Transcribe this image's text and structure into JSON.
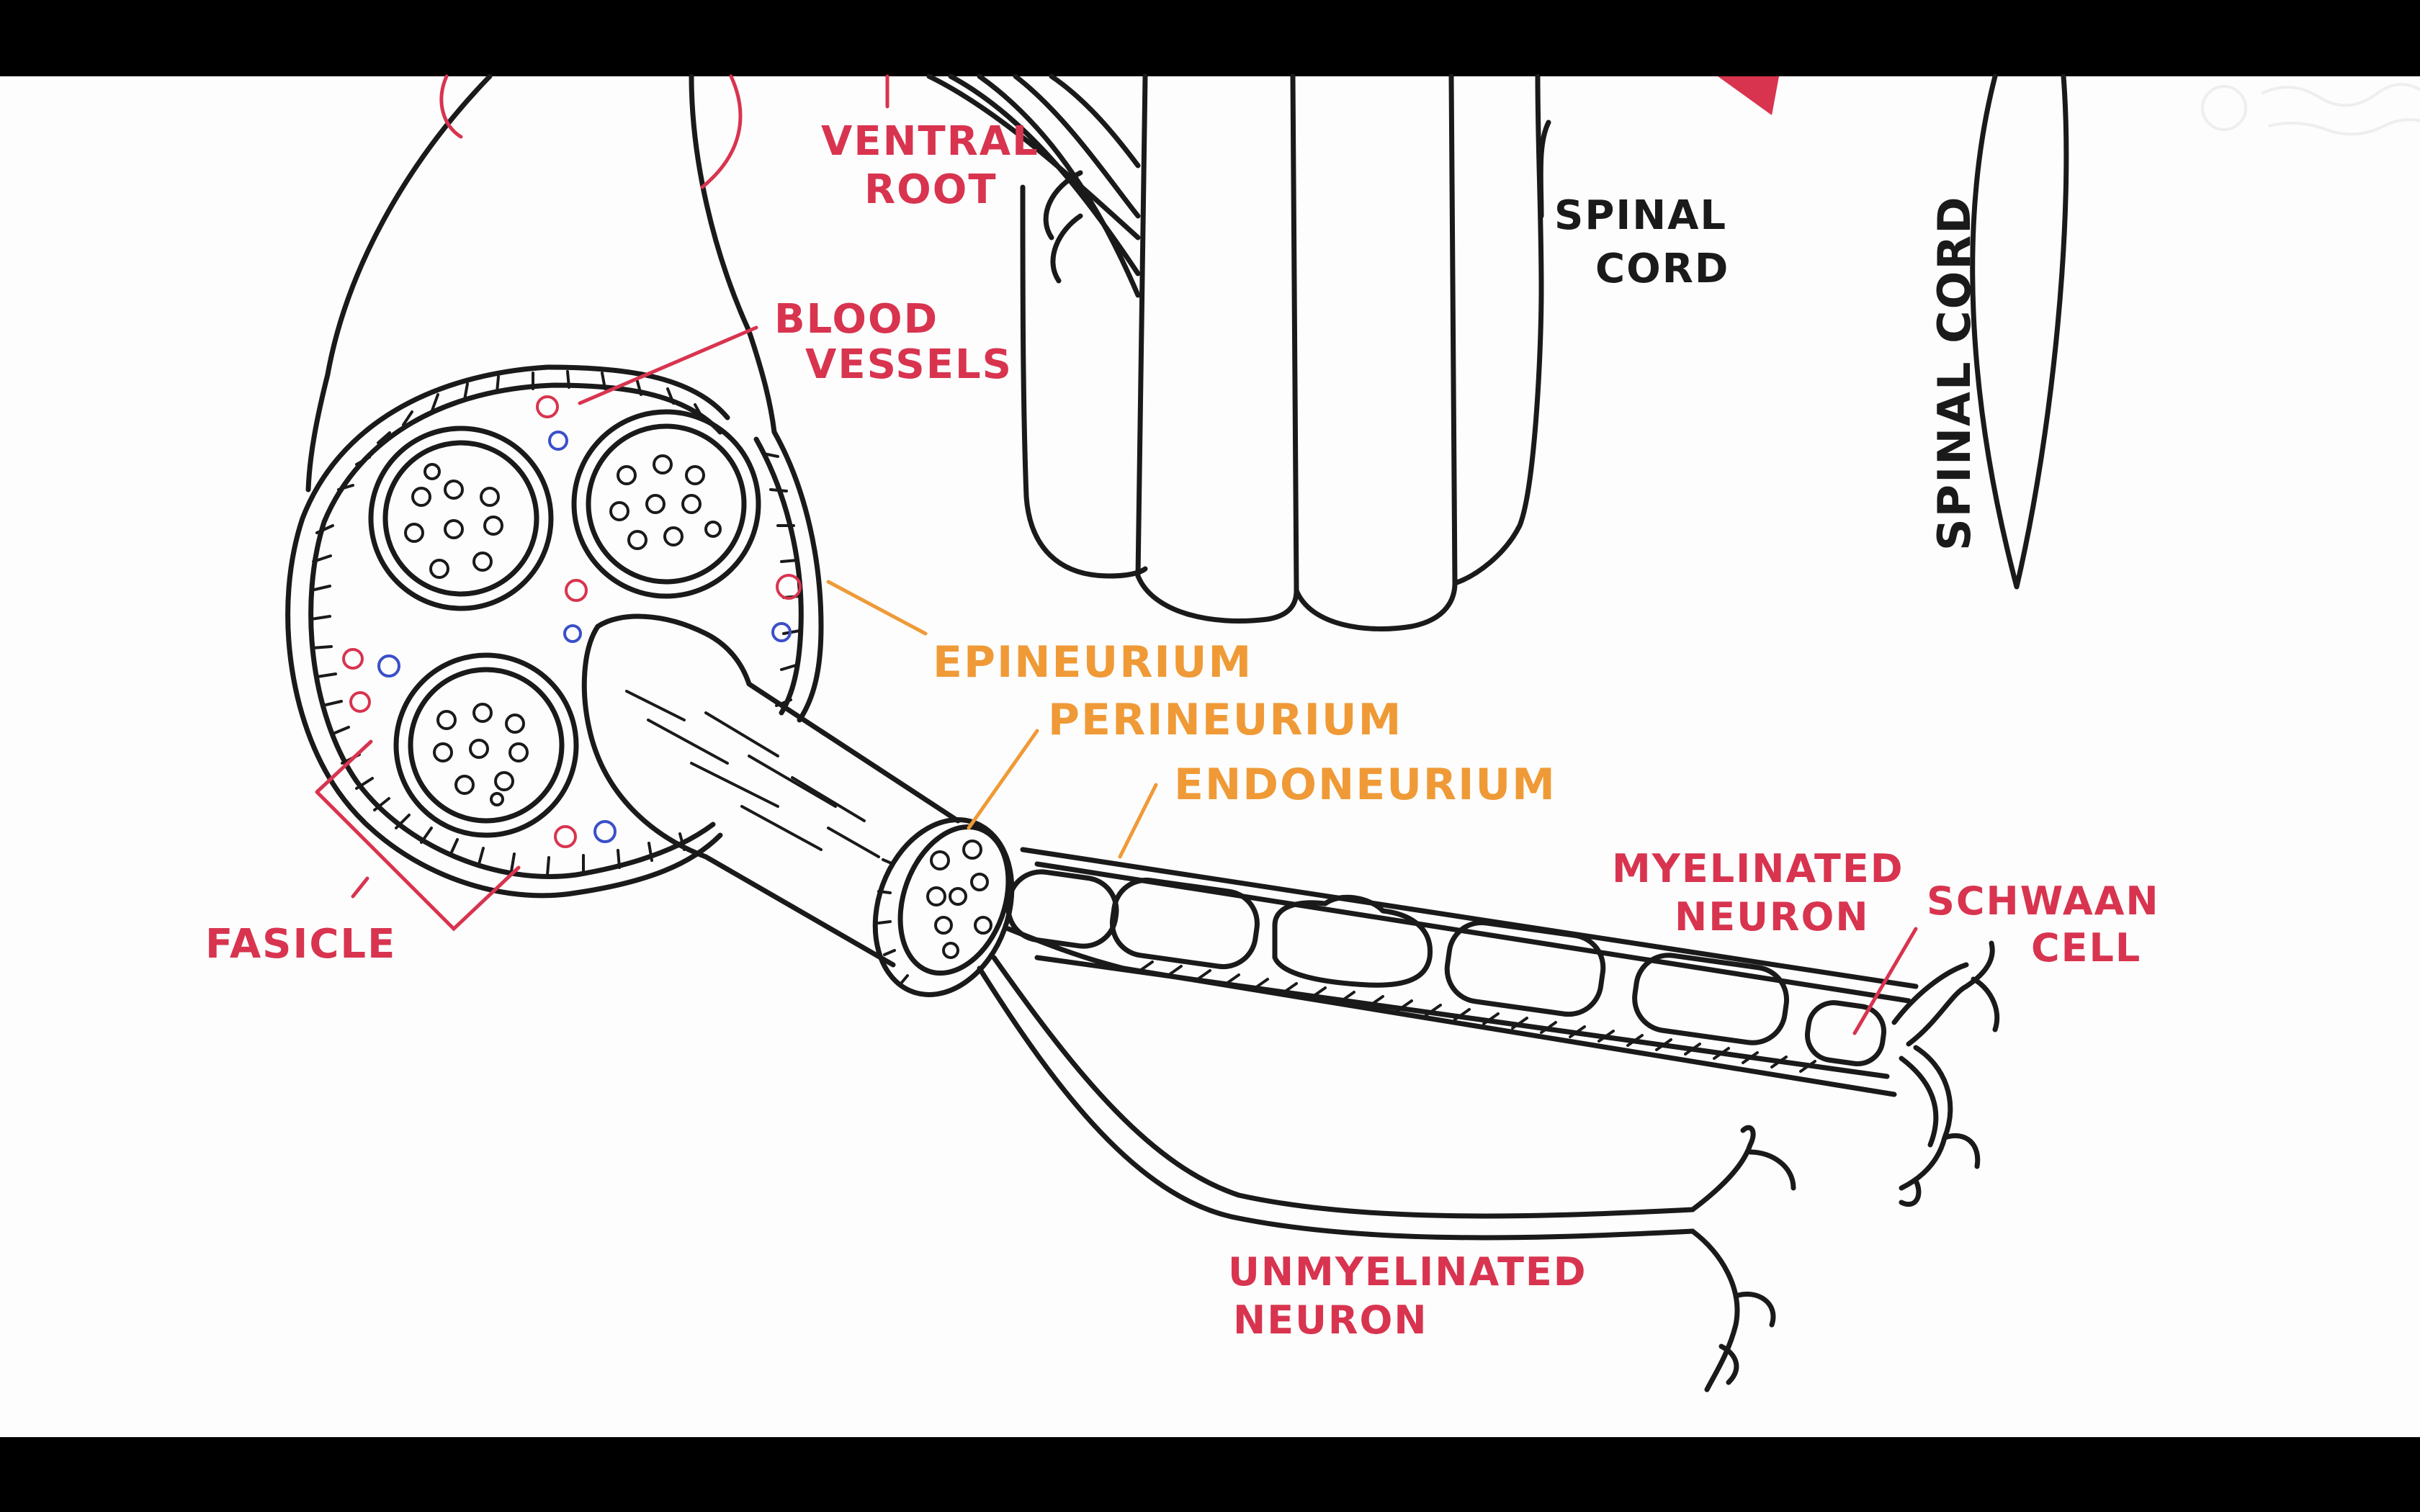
{
  "labels": {
    "ventral_root": [
      "VENTRAL",
      "ROOT"
    ],
    "spinal_cord_horizontal": [
      "SPINAL",
      "CORD"
    ],
    "spinal_cord_vertical": "SPINAL CORD",
    "blood_vessels": [
      "BLOOD",
      "VESSELS"
    ],
    "epineurium": "EPINEURIUM",
    "perineurium": "PERINEURIUM",
    "endoneurium": "ENDONEURIUM",
    "myelinated_neuron": [
      "MYELINATED",
      "NEURON"
    ],
    "schwann_cell": [
      "SCHWAAN",
      "CELL"
    ],
    "fasicle": "FASICLE",
    "unmyelinated_neuron": [
      "UNMYELINATED",
      "NEURON"
    ]
  },
  "colors": {
    "background": "#ffffff",
    "letterbox": "#000000",
    "ink": "#1a1a1a",
    "red_label": "#d8344f",
    "orange_label": "#ef9a37",
    "artery": "#d8344f",
    "vein": "#3a4fc8"
  }
}
